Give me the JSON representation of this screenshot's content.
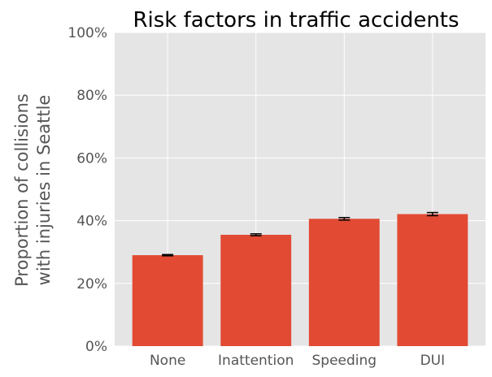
{
  "chart_data": {
    "type": "bar",
    "title": "Risk factors in traffic accidents",
    "xlabel": "",
    "ylabel": [
      "Proportion of collisions",
      "with injuries in Seattle"
    ],
    "categories": [
      "None",
      "Inattention",
      "Speeding",
      "DUI"
    ],
    "series": [
      {
        "values": [
          0.29,
          0.355,
          0.406,
          0.421
        ],
        "errors": [
          0.002,
          0.003,
          0.004,
          0.005
        ]
      }
    ],
    "ylim": [
      0,
      1
    ],
    "yticks": [
      0,
      0.2,
      0.4,
      0.6,
      0.8,
      1.0
    ],
    "ytick_labels": [
      "0%",
      "20%",
      "40%",
      "60%",
      "80%",
      "100%"
    ],
    "grid": true,
    "style": "ggplot",
    "colors": {
      "bar": "#E24A33",
      "plot_background": "#E5E5E5",
      "grid": "#FFFFFF",
      "errorbar": "#000000",
      "text": "#555555"
    }
  }
}
